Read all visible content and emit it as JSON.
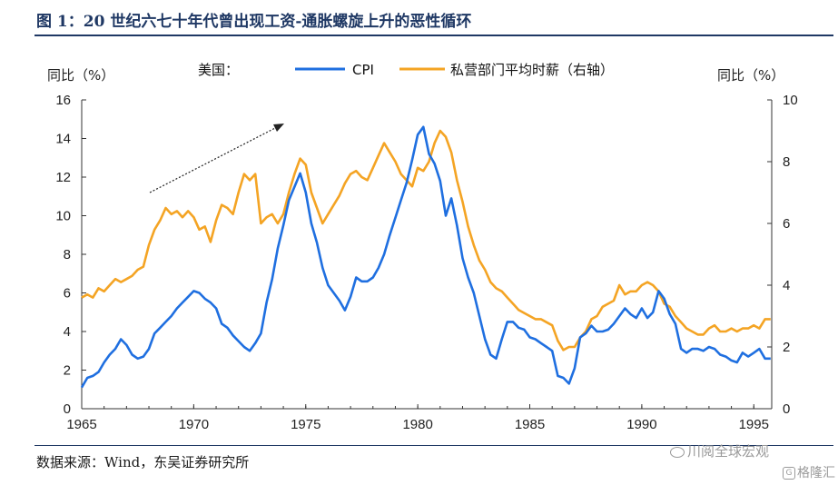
{
  "header": {
    "title": "图 1：20 世纪六七十年代曾出现工资-通胀螺旋上升的恶性循环"
  },
  "footer": {
    "source": "数据来源：Wind，东吴证券研究所",
    "watermark_1": "川阅全球宏观",
    "watermark_2": "格隆汇"
  },
  "chart_data": {
    "type": "line",
    "x_ticks": [
      "1965",
      "1970",
      "1975",
      "1980",
      "1985",
      "1990",
      "1995"
    ],
    "xlim": [
      1965,
      1995.8
    ],
    "left_axis": {
      "label": "同比（%）",
      "ylim": [
        0,
        16
      ],
      "ticks": [
        "0",
        "2",
        "4",
        "6",
        "8",
        "10",
        "12",
        "14",
        "16"
      ]
    },
    "right_axis": {
      "label": "同比（%）",
      "ylim": [
        0,
        10
      ],
      "ticks": [
        "0",
        "2",
        "4",
        "6",
        "8",
        "10"
      ]
    },
    "legend_prefix": "美国：",
    "series": [
      {
        "name": "CPI",
        "axis": "left",
        "color": "#1f6fe0",
        "points": [
          [
            1965.0,
            1.1
          ],
          [
            1965.25,
            1.6
          ],
          [
            1965.5,
            1.7
          ],
          [
            1965.75,
            1.9
          ],
          [
            1966.0,
            2.4
          ],
          [
            1966.25,
            2.8
          ],
          [
            1966.5,
            3.1
          ],
          [
            1966.75,
            3.6
          ],
          [
            1967.0,
            3.3
          ],
          [
            1967.25,
            2.8
          ],
          [
            1967.5,
            2.6
          ],
          [
            1967.75,
            2.7
          ],
          [
            1968.0,
            3.1
          ],
          [
            1968.25,
            3.9
          ],
          [
            1968.5,
            4.2
          ],
          [
            1968.75,
            4.5
          ],
          [
            1969.0,
            4.8
          ],
          [
            1969.25,
            5.2
          ],
          [
            1969.5,
            5.5
          ],
          [
            1969.75,
            5.8
          ],
          [
            1970.0,
            6.1
          ],
          [
            1970.25,
            6.0
          ],
          [
            1970.5,
            5.7
          ],
          [
            1970.75,
            5.5
          ],
          [
            1971.0,
            5.2
          ],
          [
            1971.25,
            4.4
          ],
          [
            1971.5,
            4.2
          ],
          [
            1971.75,
            3.8
          ],
          [
            1972.0,
            3.5
          ],
          [
            1972.25,
            3.2
          ],
          [
            1972.5,
            3.0
          ],
          [
            1972.75,
            3.4
          ],
          [
            1973.0,
            3.9
          ],
          [
            1973.25,
            5.5
          ],
          [
            1973.5,
            6.7
          ],
          [
            1973.75,
            8.3
          ],
          [
            1974.0,
            9.5
          ],
          [
            1974.25,
            10.8
          ],
          [
            1974.5,
            11.5
          ],
          [
            1974.75,
            12.2
          ],
          [
            1975.0,
            11.2
          ],
          [
            1975.25,
            9.6
          ],
          [
            1975.5,
            8.6
          ],
          [
            1975.75,
            7.3
          ],
          [
            1976.0,
            6.4
          ],
          [
            1976.25,
            6.0
          ],
          [
            1976.5,
            5.6
          ],
          [
            1976.75,
            5.1
          ],
          [
            1977.0,
            5.8
          ],
          [
            1977.25,
            6.8
          ],
          [
            1977.5,
            6.6
          ],
          [
            1977.75,
            6.6
          ],
          [
            1978.0,
            6.8
          ],
          [
            1978.25,
            7.3
          ],
          [
            1978.5,
            8.0
          ],
          [
            1978.75,
            9.0
          ],
          [
            1979.0,
            9.9
          ],
          [
            1979.25,
            10.8
          ],
          [
            1979.5,
            11.7
          ],
          [
            1979.75,
            12.9
          ],
          [
            1980.0,
            14.2
          ],
          [
            1980.25,
            14.6
          ],
          [
            1980.5,
            13.2
          ],
          [
            1980.75,
            12.7
          ],
          [
            1981.0,
            11.8
          ],
          [
            1981.25,
            10.0
          ],
          [
            1981.5,
            10.9
          ],
          [
            1981.75,
            9.5
          ],
          [
            1982.0,
            7.8
          ],
          [
            1982.25,
            6.8
          ],
          [
            1982.5,
            6.0
          ],
          [
            1982.75,
            4.8
          ],
          [
            1983.0,
            3.6
          ],
          [
            1983.25,
            2.8
          ],
          [
            1983.5,
            2.6
          ],
          [
            1983.75,
            3.6
          ],
          [
            1984.0,
            4.5
          ],
          [
            1984.25,
            4.5
          ],
          [
            1984.5,
            4.2
          ],
          [
            1984.75,
            4.1
          ],
          [
            1985.0,
            3.7
          ],
          [
            1985.25,
            3.6
          ],
          [
            1985.5,
            3.4
          ],
          [
            1985.75,
            3.2
          ],
          [
            1986.0,
            3.0
          ],
          [
            1986.25,
            1.7
          ],
          [
            1986.5,
            1.6
          ],
          [
            1986.75,
            1.3
          ],
          [
            1987.0,
            2.1
          ],
          [
            1987.25,
            3.7
          ],
          [
            1987.5,
            3.9
          ],
          [
            1987.75,
            4.3
          ],
          [
            1988.0,
            4.0
          ],
          [
            1988.25,
            4.0
          ],
          [
            1988.5,
            4.1
          ],
          [
            1988.75,
            4.4
          ],
          [
            1989.0,
            4.8
          ],
          [
            1989.25,
            5.2
          ],
          [
            1989.5,
            4.9
          ],
          [
            1989.75,
            4.7
          ],
          [
            1990.0,
            5.2
          ],
          [
            1990.25,
            4.7
          ],
          [
            1990.5,
            5.0
          ],
          [
            1990.75,
            6.1
          ],
          [
            1991.0,
            5.7
          ],
          [
            1991.25,
            4.9
          ],
          [
            1991.5,
            4.4
          ],
          [
            1991.75,
            3.1
          ],
          [
            1992.0,
            2.9
          ],
          [
            1992.25,
            3.1
          ],
          [
            1992.5,
            3.1
          ],
          [
            1992.75,
            3.0
          ],
          [
            1993.0,
            3.2
          ],
          [
            1993.25,
            3.1
          ],
          [
            1993.5,
            2.8
          ],
          [
            1993.75,
            2.7
          ],
          [
            1994.0,
            2.5
          ],
          [
            1994.25,
            2.4
          ],
          [
            1994.5,
            2.9
          ],
          [
            1994.75,
            2.7
          ],
          [
            1995.0,
            2.9
          ],
          [
            1995.25,
            3.1
          ],
          [
            1995.5,
            2.6
          ],
          [
            1995.75,
            2.6
          ]
        ]
      },
      {
        "name": "私营部门平均时薪（右轴）",
        "axis": "right",
        "color": "#f4a424",
        "points": [
          [
            1965.0,
            3.6
          ],
          [
            1965.25,
            3.7
          ],
          [
            1965.5,
            3.6
          ],
          [
            1965.75,
            3.9
          ],
          [
            1966.0,
            3.8
          ],
          [
            1966.25,
            4.0
          ],
          [
            1966.5,
            4.2
          ],
          [
            1966.75,
            4.1
          ],
          [
            1967.0,
            4.2
          ],
          [
            1967.25,
            4.3
          ],
          [
            1967.5,
            4.5
          ],
          [
            1967.75,
            4.6
          ],
          [
            1968.0,
            5.3
          ],
          [
            1968.25,
            5.8
          ],
          [
            1968.5,
            6.1
          ],
          [
            1968.75,
            6.5
          ],
          [
            1969.0,
            6.3
          ],
          [
            1969.25,
            6.4
          ],
          [
            1969.5,
            6.2
          ],
          [
            1969.75,
            6.4
          ],
          [
            1970.0,
            6.2
          ],
          [
            1970.25,
            5.8
          ],
          [
            1970.5,
            5.9
          ],
          [
            1970.75,
            5.4
          ],
          [
            1971.0,
            6.1
          ],
          [
            1971.25,
            6.6
          ],
          [
            1971.5,
            6.5
          ],
          [
            1971.75,
            6.3
          ],
          [
            1972.0,
            7.0
          ],
          [
            1972.25,
            7.6
          ],
          [
            1972.5,
            7.4
          ],
          [
            1972.75,
            7.6
          ],
          [
            1973.0,
            6.0
          ],
          [
            1973.25,
            6.2
          ],
          [
            1973.5,
            6.3
          ],
          [
            1973.75,
            6.0
          ],
          [
            1974.0,
            6.3
          ],
          [
            1974.25,
            7.0
          ],
          [
            1974.5,
            7.6
          ],
          [
            1974.75,
            8.1
          ],
          [
            1975.0,
            7.9
          ],
          [
            1975.25,
            7.0
          ],
          [
            1975.5,
            6.5
          ],
          [
            1975.75,
            6.0
          ],
          [
            1976.0,
            6.3
          ],
          [
            1976.25,
            6.6
          ],
          [
            1976.5,
            6.9
          ],
          [
            1976.75,
            7.3
          ],
          [
            1977.0,
            7.6
          ],
          [
            1977.25,
            7.7
          ],
          [
            1977.5,
            7.5
          ],
          [
            1977.75,
            7.4
          ],
          [
            1978.0,
            7.8
          ],
          [
            1978.25,
            8.2
          ],
          [
            1978.5,
            8.6
          ],
          [
            1978.75,
            8.3
          ],
          [
            1979.0,
            8.0
          ],
          [
            1979.25,
            7.6
          ],
          [
            1979.5,
            7.4
          ],
          [
            1979.75,
            7.2
          ],
          [
            1980.0,
            7.8
          ],
          [
            1980.25,
            7.7
          ],
          [
            1980.5,
            8.0
          ],
          [
            1980.75,
            8.6
          ],
          [
            1981.0,
            9.0
          ],
          [
            1981.25,
            8.8
          ],
          [
            1981.5,
            8.3
          ],
          [
            1981.75,
            7.4
          ],
          [
            1982.0,
            6.7
          ],
          [
            1982.25,
            5.9
          ],
          [
            1982.5,
            5.3
          ],
          [
            1982.75,
            4.8
          ],
          [
            1983.0,
            4.5
          ],
          [
            1983.25,
            4.1
          ],
          [
            1983.5,
            3.9
          ],
          [
            1983.75,
            3.8
          ],
          [
            1984.0,
            3.6
          ],
          [
            1984.25,
            3.4
          ],
          [
            1984.5,
            3.2
          ],
          [
            1984.75,
            3.1
          ],
          [
            1985.0,
            3.0
          ],
          [
            1985.25,
            2.9
          ],
          [
            1985.5,
            2.9
          ],
          [
            1985.75,
            2.8
          ],
          [
            1986.0,
            2.7
          ],
          [
            1986.25,
            2.2
          ],
          [
            1986.5,
            1.9
          ],
          [
            1986.75,
            2.0
          ],
          [
            1987.0,
            2.0
          ],
          [
            1987.25,
            2.3
          ],
          [
            1987.5,
            2.5
          ],
          [
            1987.75,
            2.9
          ],
          [
            1988.0,
            3.0
          ],
          [
            1988.25,
            3.3
          ],
          [
            1988.5,
            3.4
          ],
          [
            1988.75,
            3.5
          ],
          [
            1989.0,
            4.0
          ],
          [
            1989.25,
            3.7
          ],
          [
            1989.5,
            3.8
          ],
          [
            1989.75,
            3.8
          ],
          [
            1990.0,
            4.0
          ],
          [
            1990.25,
            4.1
          ],
          [
            1990.5,
            4.0
          ],
          [
            1990.75,
            3.8
          ],
          [
            1991.0,
            3.4
          ],
          [
            1991.25,
            3.3
          ],
          [
            1991.5,
            3.0
          ],
          [
            1991.75,
            2.8
          ],
          [
            1992.0,
            2.6
          ],
          [
            1992.25,
            2.5
          ],
          [
            1992.5,
            2.4
          ],
          [
            1992.75,
            2.4
          ],
          [
            1993.0,
            2.6
          ],
          [
            1993.25,
            2.7
          ],
          [
            1993.5,
            2.5
          ],
          [
            1993.75,
            2.5
          ],
          [
            1994.0,
            2.6
          ],
          [
            1994.25,
            2.5
          ],
          [
            1994.5,
            2.6
          ],
          [
            1994.75,
            2.6
          ],
          [
            1995.0,
            2.7
          ],
          [
            1995.25,
            2.6
          ],
          [
            1995.5,
            2.9
          ],
          [
            1995.75,
            2.9
          ]
        ]
      }
    ],
    "grid": false,
    "legend_placement": "top"
  }
}
